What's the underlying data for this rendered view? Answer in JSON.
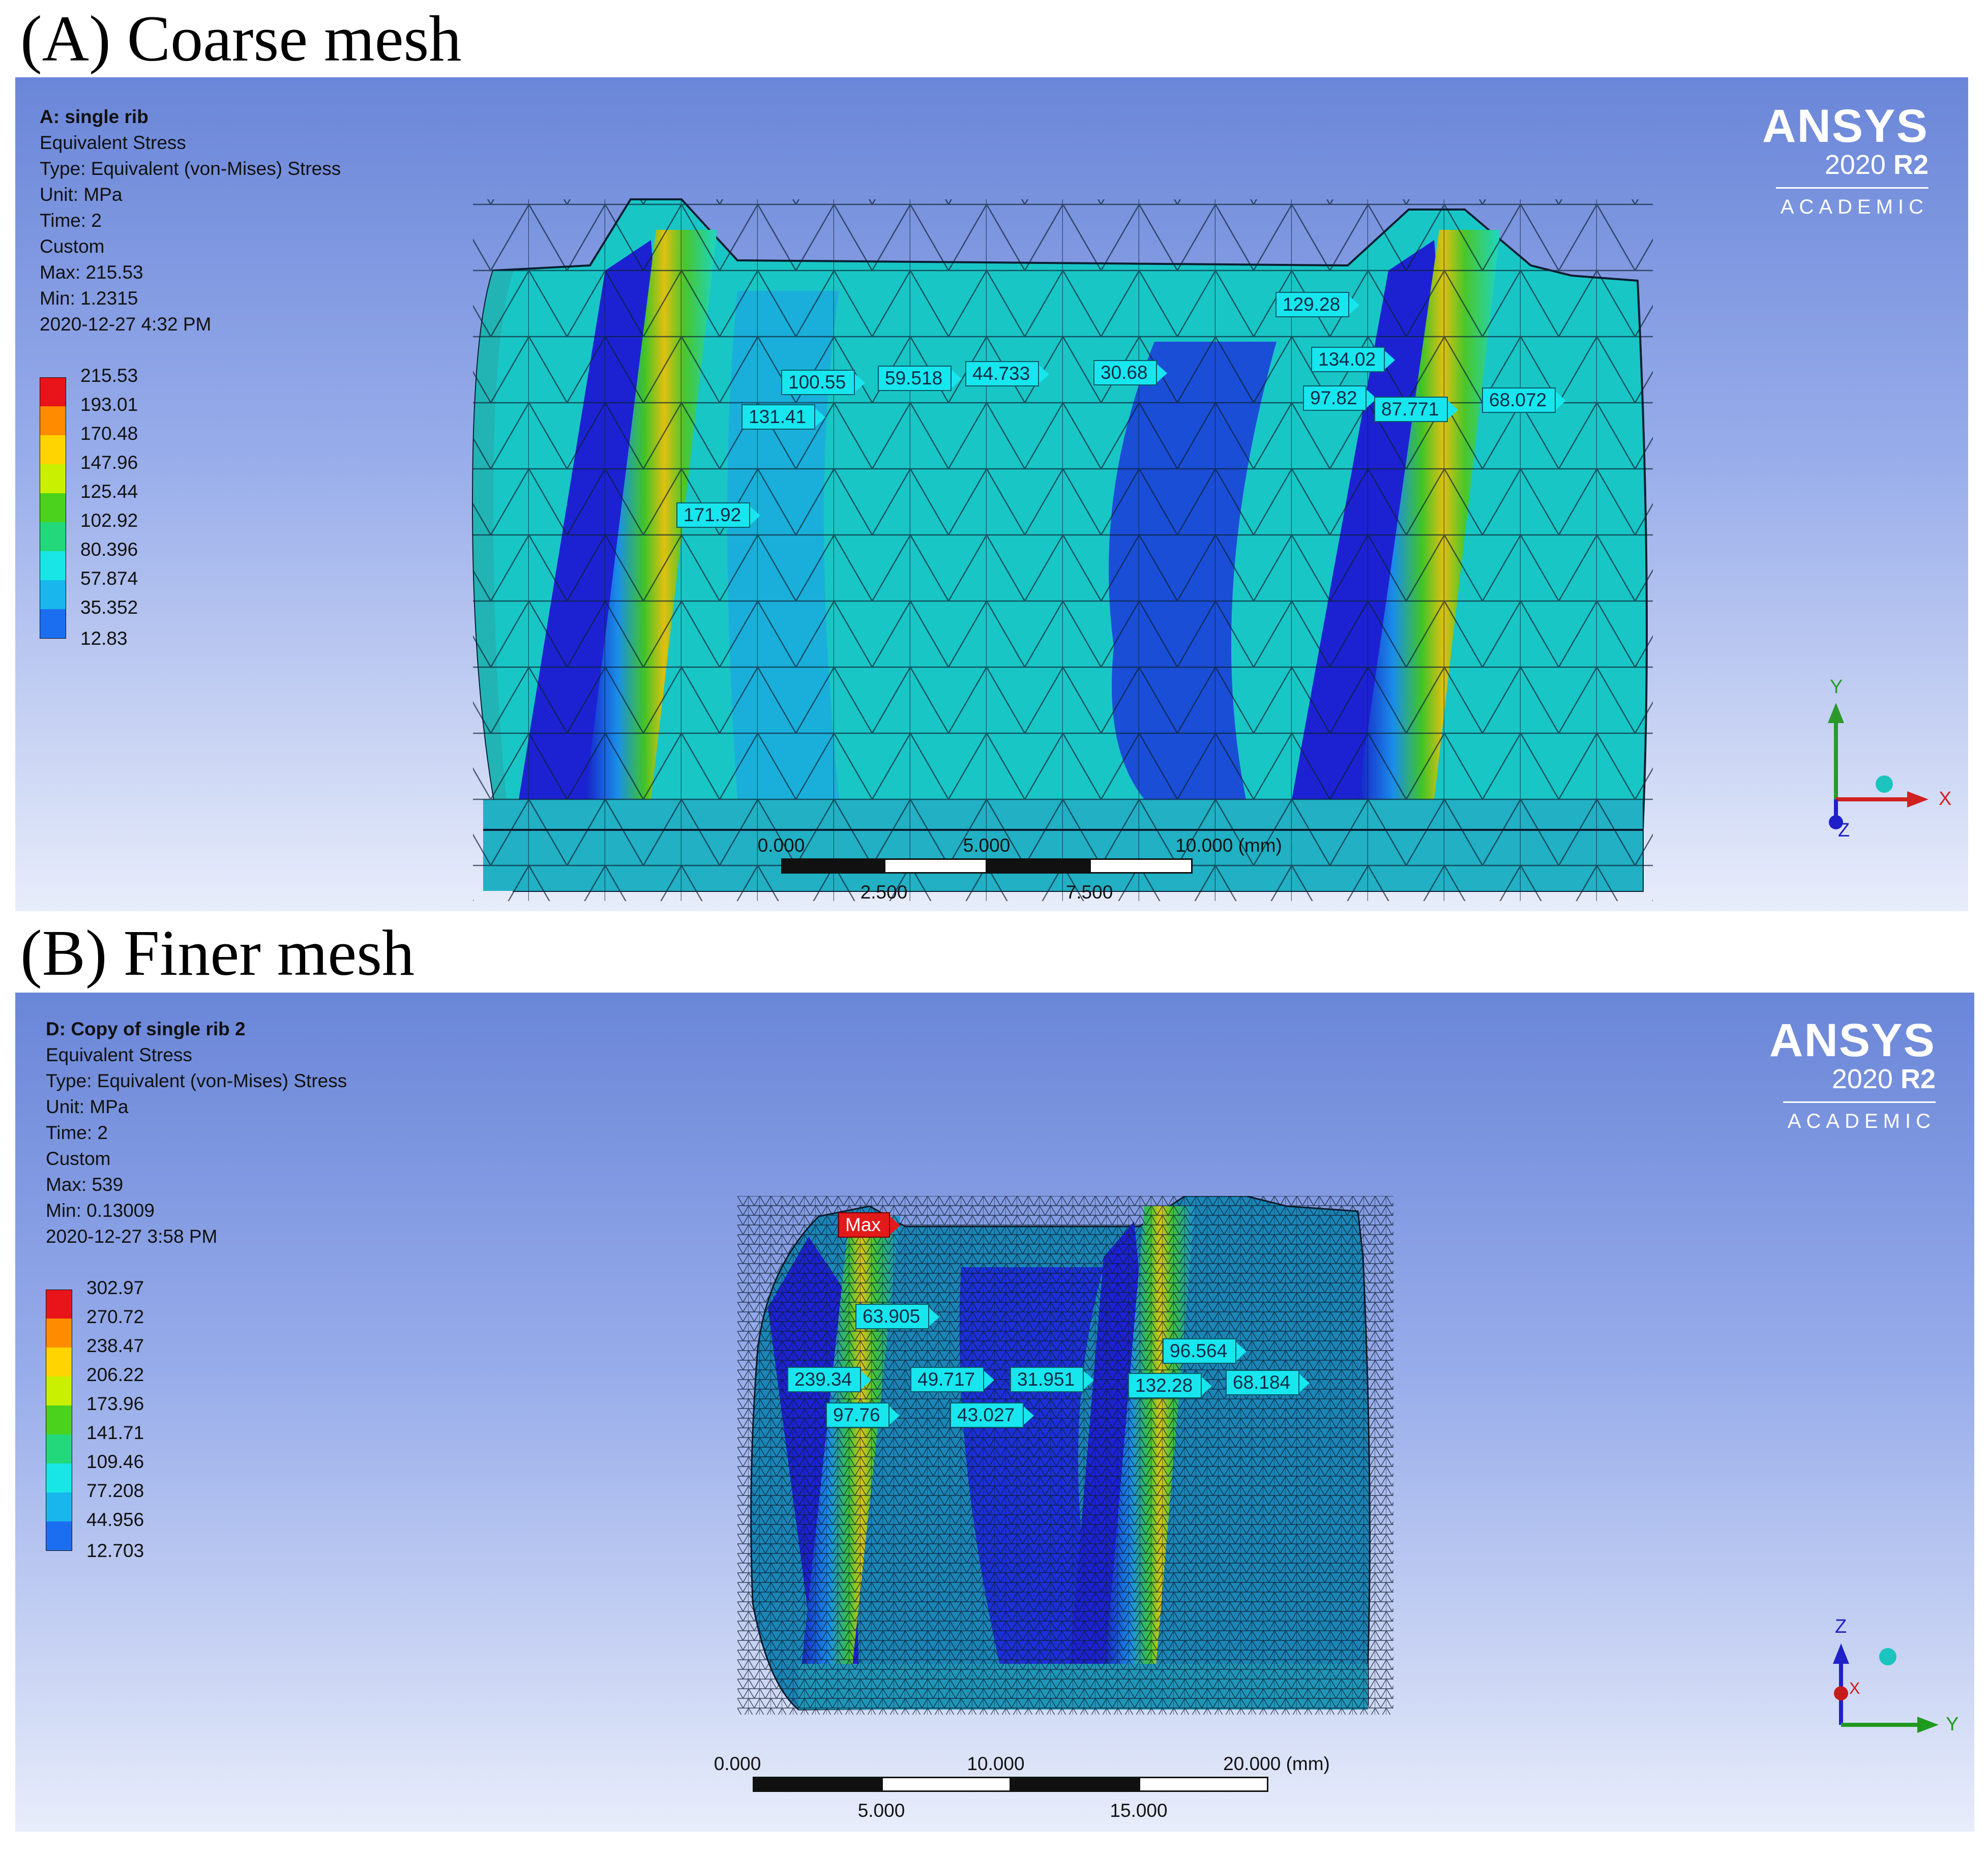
{
  "panels": [
    {
      "heading": "(A) Coarse mesh",
      "info": {
        "title": "A: single rib",
        "lines": [
          "Equivalent Stress",
          "Type: Equivalent (von-Mises) Stress",
          "Unit: MPa",
          "Time: 2",
          "Custom",
          "Max: 215.53",
          "Min: 1.2315",
          "2020-12-27 4:32 PM"
        ]
      },
      "legend": [
        "215.53",
        "193.01",
        "170.48",
        "147.96",
        "125.44",
        "102.92",
        "80.396",
        "57.874",
        "35.352",
        "12.83"
      ],
      "probes": [
        "129.28",
        "134.02",
        "100.55",
        "59.518",
        "44.733",
        "30.68",
        "131.41",
        "97.82",
        "87.771",
        "68.072",
        "171.92"
      ],
      "scale": {
        "ticks_top": [
          "0.000",
          "5.000",
          "10.000 (mm)"
        ],
        "ticks_bottom": [
          "2.500",
          "7.500"
        ]
      },
      "triad": {
        "up": "Y",
        "right": "X",
        "out": "Z"
      }
    },
    {
      "heading": "(B) Finer mesh",
      "info": {
        "title": "D: Copy of single rib 2",
        "lines": [
          "Equivalent Stress",
          "Type: Equivalent (von-Mises) Stress",
          "Unit: MPa",
          "Time: 2",
          "Custom",
          "Max: 539",
          "Min: 0.13009",
          "2020-12-27 3:58 PM"
        ]
      },
      "legend": [
        "302.97",
        "270.72",
        "238.47",
        "206.22",
        "173.96",
        "141.71",
        "109.46",
        "77.208",
        "44.956",
        "12.703"
      ],
      "max_label": "Max",
      "probes": [
        "63.905",
        "96.564",
        "239.34",
        "49.717",
        "31.951",
        "132.28",
        "68.184",
        "97.76",
        "43.027"
      ],
      "scale": {
        "ticks_top": [
          "0.000",
          "10.000",
          "20.000 (mm)"
        ],
        "ticks_bottom": [
          "5.000",
          "15.000"
        ]
      },
      "triad": {
        "up": "Z",
        "right": "Y",
        "out": "X"
      }
    }
  ],
  "brand": {
    "name": "ANSYS",
    "version": "2020",
    "release": "R2",
    "edition": "ACADEMIC"
  },
  "legend_colors": [
    "#e8141a",
    "#ff8c00",
    "#ffd400",
    "#c8f000",
    "#4ad21c",
    "#22d87a",
    "#18e6e6",
    "#19b6ee",
    "#1c6ef0",
    "#1010d8"
  ],
  "colors": {
    "probe": "#17e6ef",
    "max_probe": "#e31a1a"
  }
}
